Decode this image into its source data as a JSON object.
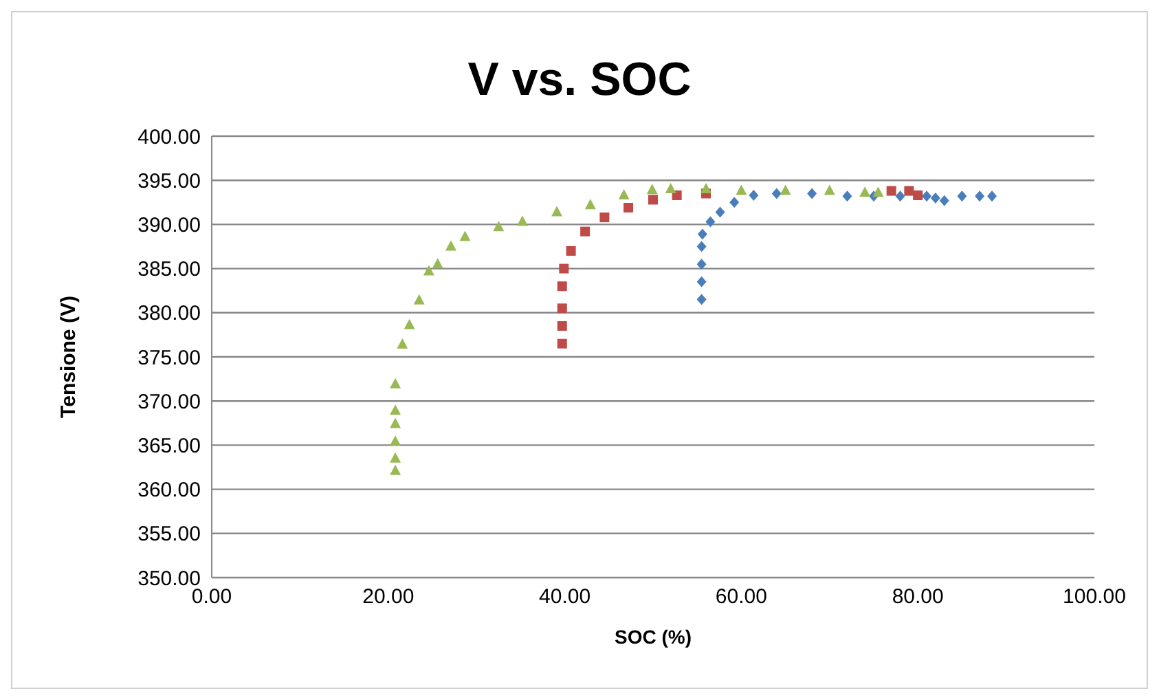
{
  "chart_data": {
    "type": "scatter",
    "title": "V vs. SOC",
    "xlabel": "SOC (%)",
    "ylabel": "Tensione  (V)",
    "xlim": [
      0,
      100
    ],
    "xticks": [
      {
        "value": 0,
        "label": "0.00"
      },
      {
        "value": 20,
        "label": "20.00"
      },
      {
        "value": 40,
        "label": "40.00"
      },
      {
        "value": 60,
        "label": "60.00"
      },
      {
        "value": 80,
        "label": "80.00"
      },
      {
        "value": 100,
        "label": "100.00"
      }
    ],
    "ylim": [
      350,
      400
    ],
    "yticks": [
      {
        "value": 350,
        "label": "350.00"
      },
      {
        "value": 355,
        "label": "355.00"
      },
      {
        "value": 360,
        "label": "360.00"
      },
      {
        "value": 365,
        "label": "365.00"
      },
      {
        "value": 370,
        "label": "370.00"
      },
      {
        "value": 375,
        "label": "375.00"
      },
      {
        "value": 380,
        "label": "380.00"
      },
      {
        "value": 385,
        "label": "385.00"
      },
      {
        "value": 390,
        "label": "390.00"
      },
      {
        "value": 395,
        "label": "395.00"
      },
      {
        "value": 400,
        "label": "400.00"
      }
    ],
    "grid": "y",
    "series": [
      {
        "color": "#4a7ebb",
        "marker": "diamond",
        "x": [
          55.5,
          55.5,
          55.5,
          55.5,
          55.6,
          56.5,
          57.6,
          59.2,
          61.4,
          64,
          68,
          72,
          75,
          78,
          81,
          82,
          83,
          85,
          87,
          88.4
        ],
        "values": [
          381.5,
          383.5,
          385.5,
          387.5,
          388.9,
          390.3,
          391.4,
          392.5,
          393.3,
          393.5,
          393.5,
          393.2,
          393.2,
          393.2,
          393.2,
          393,
          392.7,
          393.2,
          393.2,
          393.2
        ]
      },
      {
        "color": "#be4b48",
        "marker": "square",
        "x": [
          39.7,
          39.7,
          39.7,
          39.7,
          39.9,
          40.7,
          42.3,
          44.5,
          47.2,
          50,
          52.7,
          56,
          60,
          65,
          70,
          74,
          77,
          79,
          80
        ],
        "values": [
          376.5,
          378.5,
          380.5,
          383,
          385,
          387,
          389.2,
          390.8,
          391.9,
          392.8,
          393.3,
          393.5,
          null,
          null,
          null,
          null,
          393.8,
          393.8,
          393.3
        ]
      },
      {
        "color": "#98b954",
        "marker": "triangle",
        "x": [
          20.8,
          20.8,
          20.8,
          20.8,
          20.8,
          20.8,
          21.6,
          22.4,
          23.5,
          24.6,
          25.6,
          27.1,
          28.7,
          32.5,
          35.2,
          39.1,
          42.9,
          46.7,
          49.9,
          52,
          56,
          60,
          65,
          70,
          74,
          75.5
        ],
        "values": [
          362.1,
          363.5,
          365.4,
          367.4,
          368.9,
          371.9,
          376.4,
          378.6,
          381.4,
          384.7,
          385.5,
          387.5,
          388.6,
          389.7,
          390.3,
          391.4,
          392.2,
          393.3,
          393.9,
          394,
          394,
          393.8,
          393.8,
          393.8,
          393.6,
          393.6
        ]
      }
    ]
  }
}
